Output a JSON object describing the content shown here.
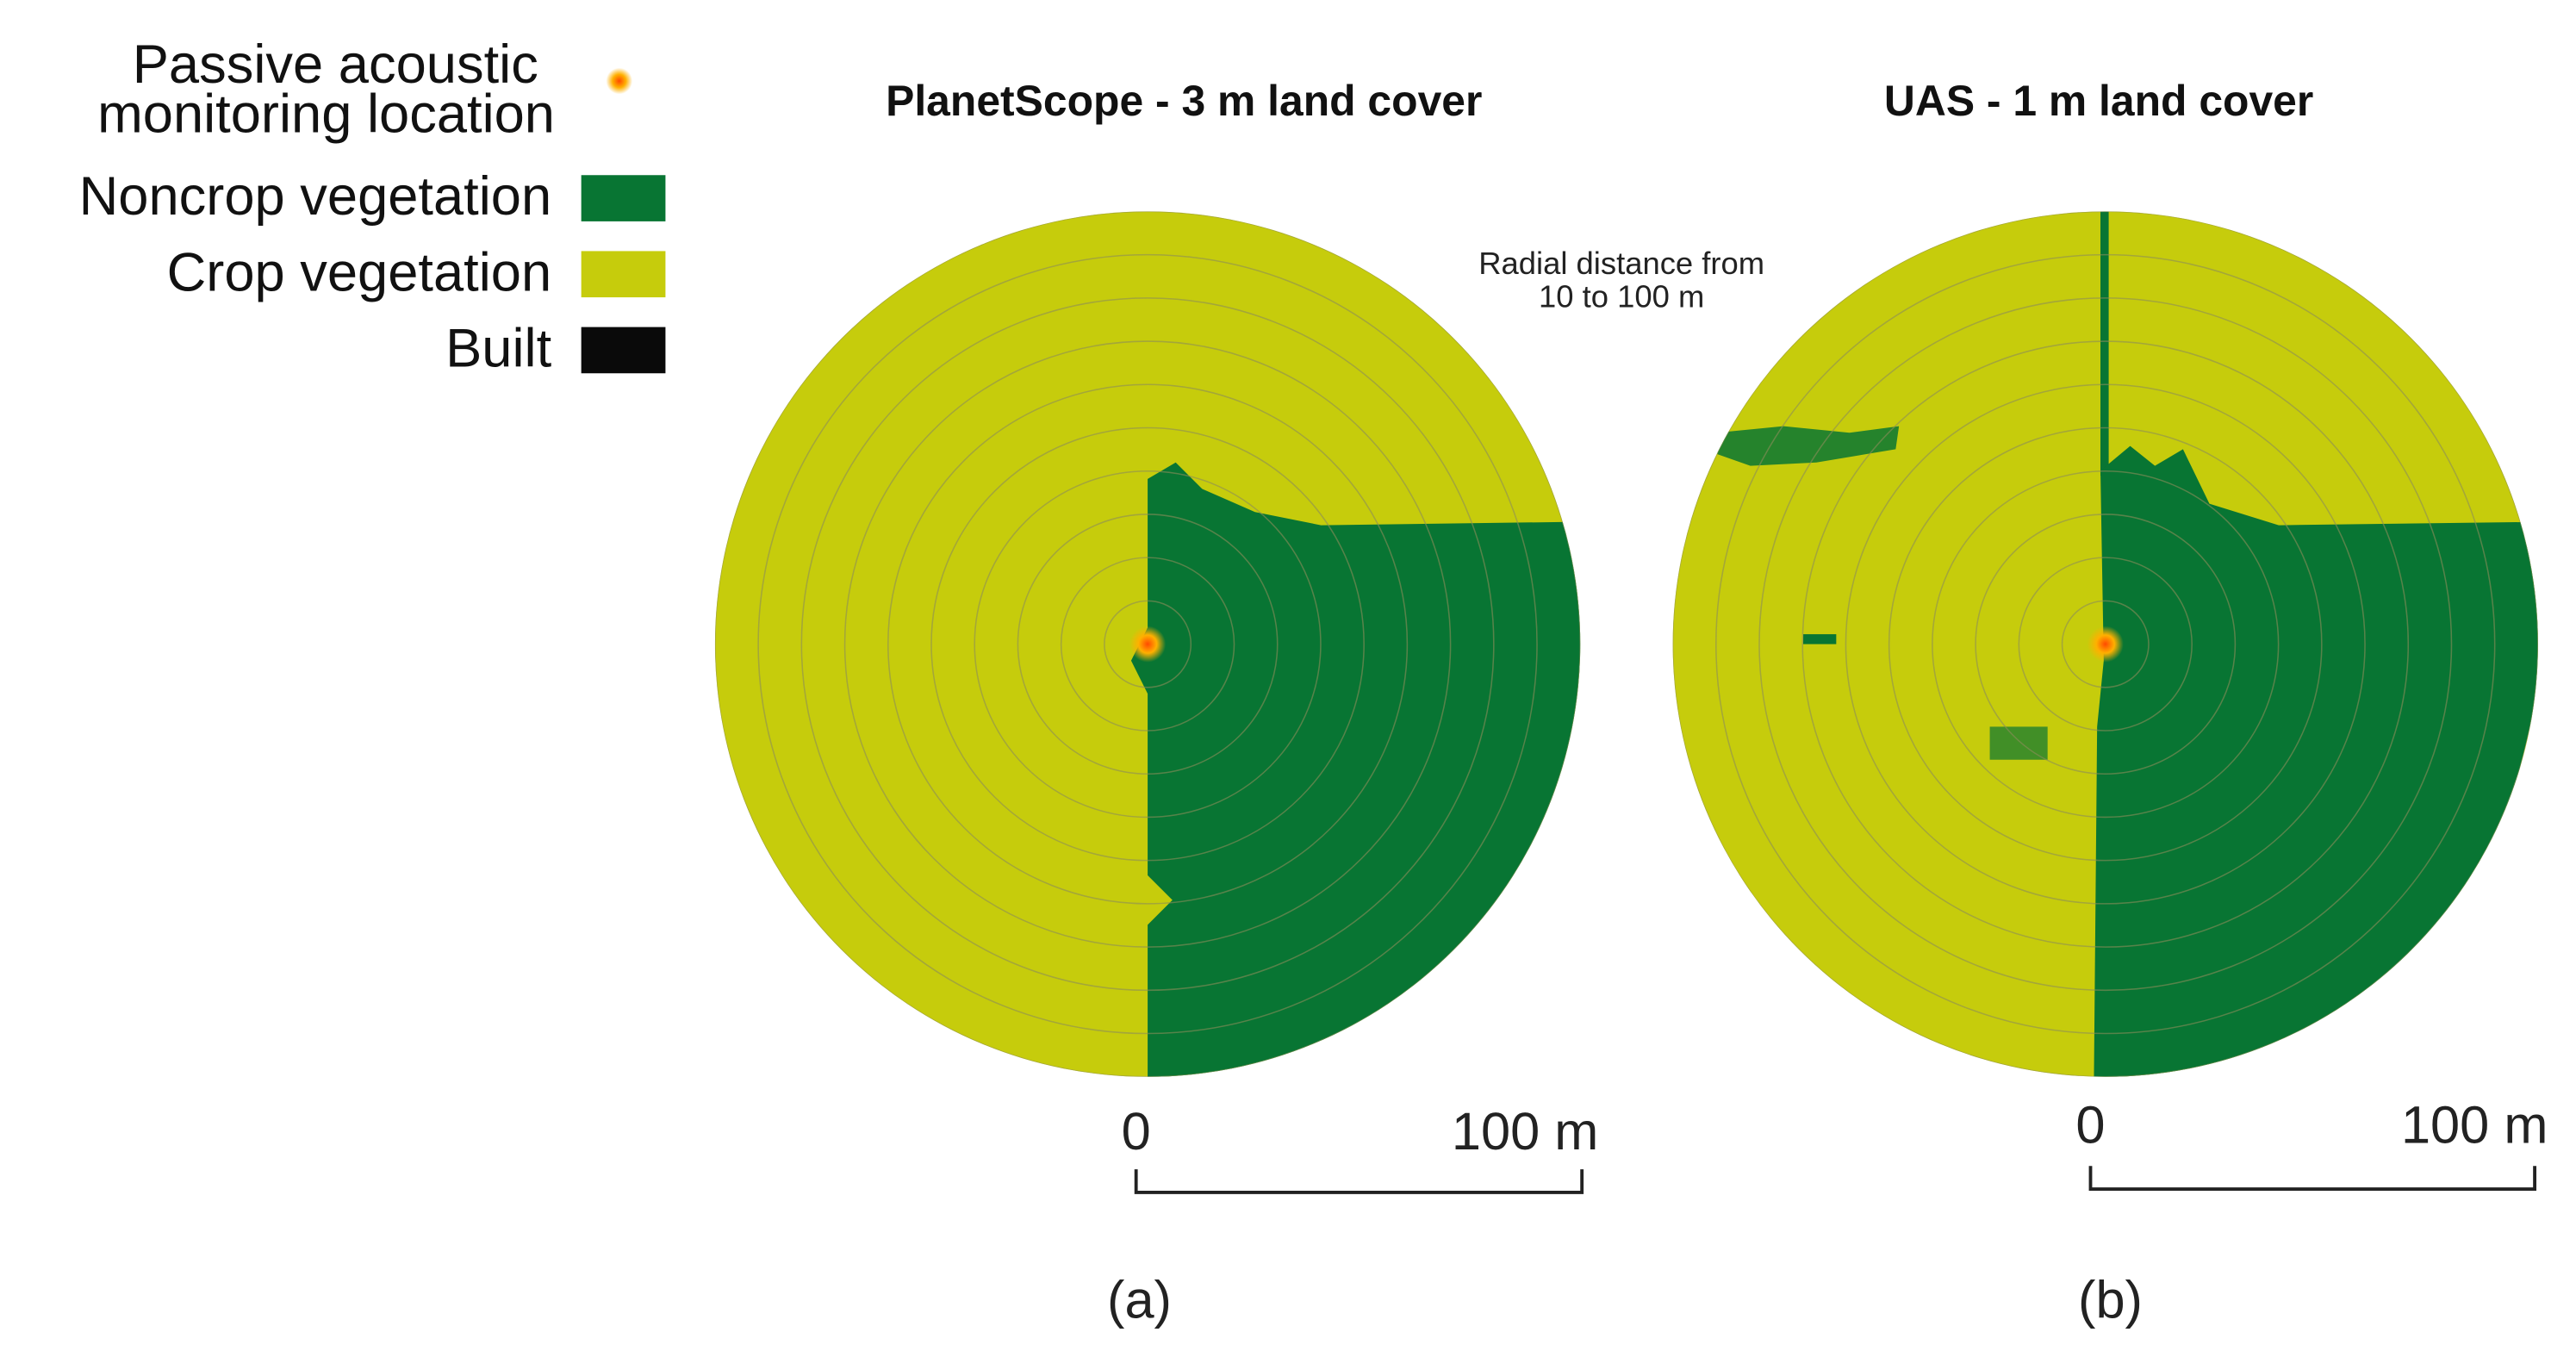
{
  "legend": {
    "items": [
      {
        "label_lines": [
          "Passive acoustic",
          "monitoring location"
        ]
      },
      {
        "label_lines": [
          "Noncrop vegetation"
        ]
      },
      {
        "label_lines": [
          "Crop vegetation"
        ]
      },
      {
        "label_lines": [
          "Built"
        ]
      }
    ]
  },
  "annotation": {
    "lines": [
      "Radial distance from",
      "10 to 100 m"
    ]
  },
  "panels": [
    {
      "title": "PlanetScope - 3 m land cover",
      "scale_start": "0",
      "scale_end": "100 m",
      "label": "(a)"
    },
    {
      "title": "UAS - 1 m land cover",
      "scale_start": "0",
      "scale_end": "100 m",
      "label": "(b)"
    }
  ]
}
